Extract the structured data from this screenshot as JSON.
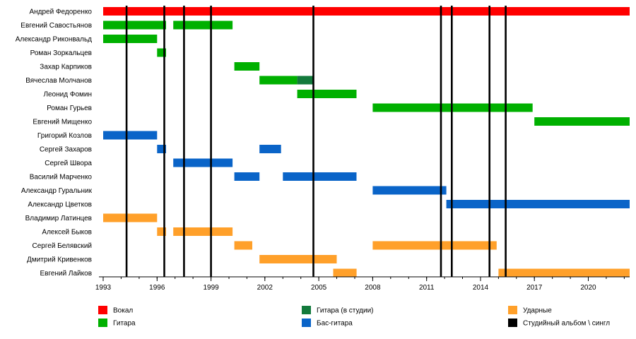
{
  "chart_data": {
    "type": "timeline",
    "x_range": [
      1993.0,
      2022.3
    ],
    "ticks": [
      "1993",
      "1996",
      "1999",
      "2002",
      "2005",
      "2008",
      "2011",
      "2014",
      "2017",
      "2020"
    ],
    "roles": [
      {
        "key": "vocal",
        "label": "Вокал",
        "color": "#ff0000"
      },
      {
        "key": "guitar",
        "label": "Гитара",
        "color": "#00b000"
      },
      {
        "key": "guitar_studio",
        "label": "Гитара (в студии)",
        "color": "#137a3c"
      },
      {
        "key": "bass",
        "label": "Бас-гитара",
        "color": "#0a64c8"
      },
      {
        "key": "drums",
        "label": "Ударные",
        "color": "#ffa02a"
      },
      {
        "key": "album",
        "label": "Студийный альбом \\ сингл",
        "color": "#000000"
      }
    ],
    "members": [
      {
        "name": "Андрей Федоренко",
        "spans": [
          {
            "start": 1993.0,
            "end": 2022.3,
            "role": "vocal"
          }
        ]
      },
      {
        "name": "Евгений Савостьянов",
        "spans": [
          {
            "start": 1993.0,
            "end": 1996.5,
            "role": "guitar"
          },
          {
            "start": 1996.9,
            "end": 2000.2,
            "role": "guitar"
          }
        ]
      },
      {
        "name": "Александр Риконвальд",
        "spans": [
          {
            "start": 1993.0,
            "end": 1996.0,
            "role": "guitar"
          }
        ]
      },
      {
        "name": "Роман Зоркальцев",
        "spans": [
          {
            "start": 1996.0,
            "end": 1996.5,
            "role": "guitar"
          }
        ]
      },
      {
        "name": "Захар Карпиков",
        "spans": [
          {
            "start": 2000.3,
            "end": 2001.7,
            "role": "guitar"
          }
        ]
      },
      {
        "name": "Вячеслав Молчанов",
        "spans": [
          {
            "start": 2001.7,
            "end": 2003.8,
            "role": "guitar"
          },
          {
            "start": 2003.8,
            "end": 2004.7,
            "role": "guitar_studio"
          }
        ]
      },
      {
        "name": "Леонид Фомин",
        "spans": [
          {
            "start": 2003.8,
            "end": 2007.1,
            "role": "guitar"
          }
        ]
      },
      {
        "name": "Роман Гурьев",
        "spans": [
          {
            "start": 2008.0,
            "end": 2016.9,
            "role": "guitar"
          }
        ]
      },
      {
        "name": "Евгений Мищенко",
        "spans": [
          {
            "start": 2017.0,
            "end": 2022.3,
            "role": "guitar"
          }
        ]
      },
      {
        "name": "Григорий Козлов",
        "spans": [
          {
            "start": 1993.0,
            "end": 1996.0,
            "role": "bass"
          }
        ]
      },
      {
        "name": "Сергей Захаров",
        "spans": [
          {
            "start": 1996.0,
            "end": 1996.5,
            "role": "bass"
          },
          {
            "start": 2001.7,
            "end": 2002.9,
            "role": "bass"
          }
        ]
      },
      {
        "name": "Сергей Швора",
        "spans": [
          {
            "start": 1996.9,
            "end": 2000.2,
            "role": "bass"
          }
        ]
      },
      {
        "name": "Василий Марченко",
        "spans": [
          {
            "start": 2000.3,
            "end": 2001.7,
            "role": "bass"
          },
          {
            "start": 2003.0,
            "end": 2007.1,
            "role": "bass"
          }
        ]
      },
      {
        "name": "Александр Гуральник",
        "spans": [
          {
            "start": 2008.0,
            "end": 2012.1,
            "role": "bass"
          }
        ]
      },
      {
        "name": "Александр Цветков",
        "spans": [
          {
            "start": 2012.1,
            "end": 2022.3,
            "role": "bass"
          }
        ]
      },
      {
        "name": "Владимир Латинцев",
        "spans": [
          {
            "start": 1993.0,
            "end": 1996.0,
            "role": "drums"
          }
        ]
      },
      {
        "name": "Алексей Быков",
        "spans": [
          {
            "start": 1996.0,
            "end": 1996.5,
            "role": "drums"
          },
          {
            "start": 1996.9,
            "end": 2000.2,
            "role": "drums"
          }
        ]
      },
      {
        "name": "Сергей Белявский",
        "spans": [
          {
            "start": 2000.3,
            "end": 2001.3,
            "role": "drums"
          },
          {
            "start": 2008.0,
            "end": 2014.9,
            "role": "drums"
          }
        ]
      },
      {
        "name": "Дмитрий Кривенков",
        "spans": [
          {
            "start": 2001.7,
            "end": 2006.0,
            "role": "drums"
          }
        ]
      },
      {
        "name": "Евгений Лайков",
        "spans": [
          {
            "start": 2005.8,
            "end": 2007.1,
            "role": "drums"
          },
          {
            "start": 2015.0,
            "end": 2022.3,
            "role": "drums"
          }
        ]
      }
    ],
    "album_lines": [
      1994.3,
      1996.4,
      1997.5,
      1999.0,
      2004.7,
      2011.8,
      2012.4,
      2014.5,
      2015.4
    ],
    "legend": [
      [
        "vocal",
        "guitar"
      ],
      [
        "guitar_studio",
        "bass"
      ],
      [
        "drums",
        "album"
      ]
    ]
  }
}
